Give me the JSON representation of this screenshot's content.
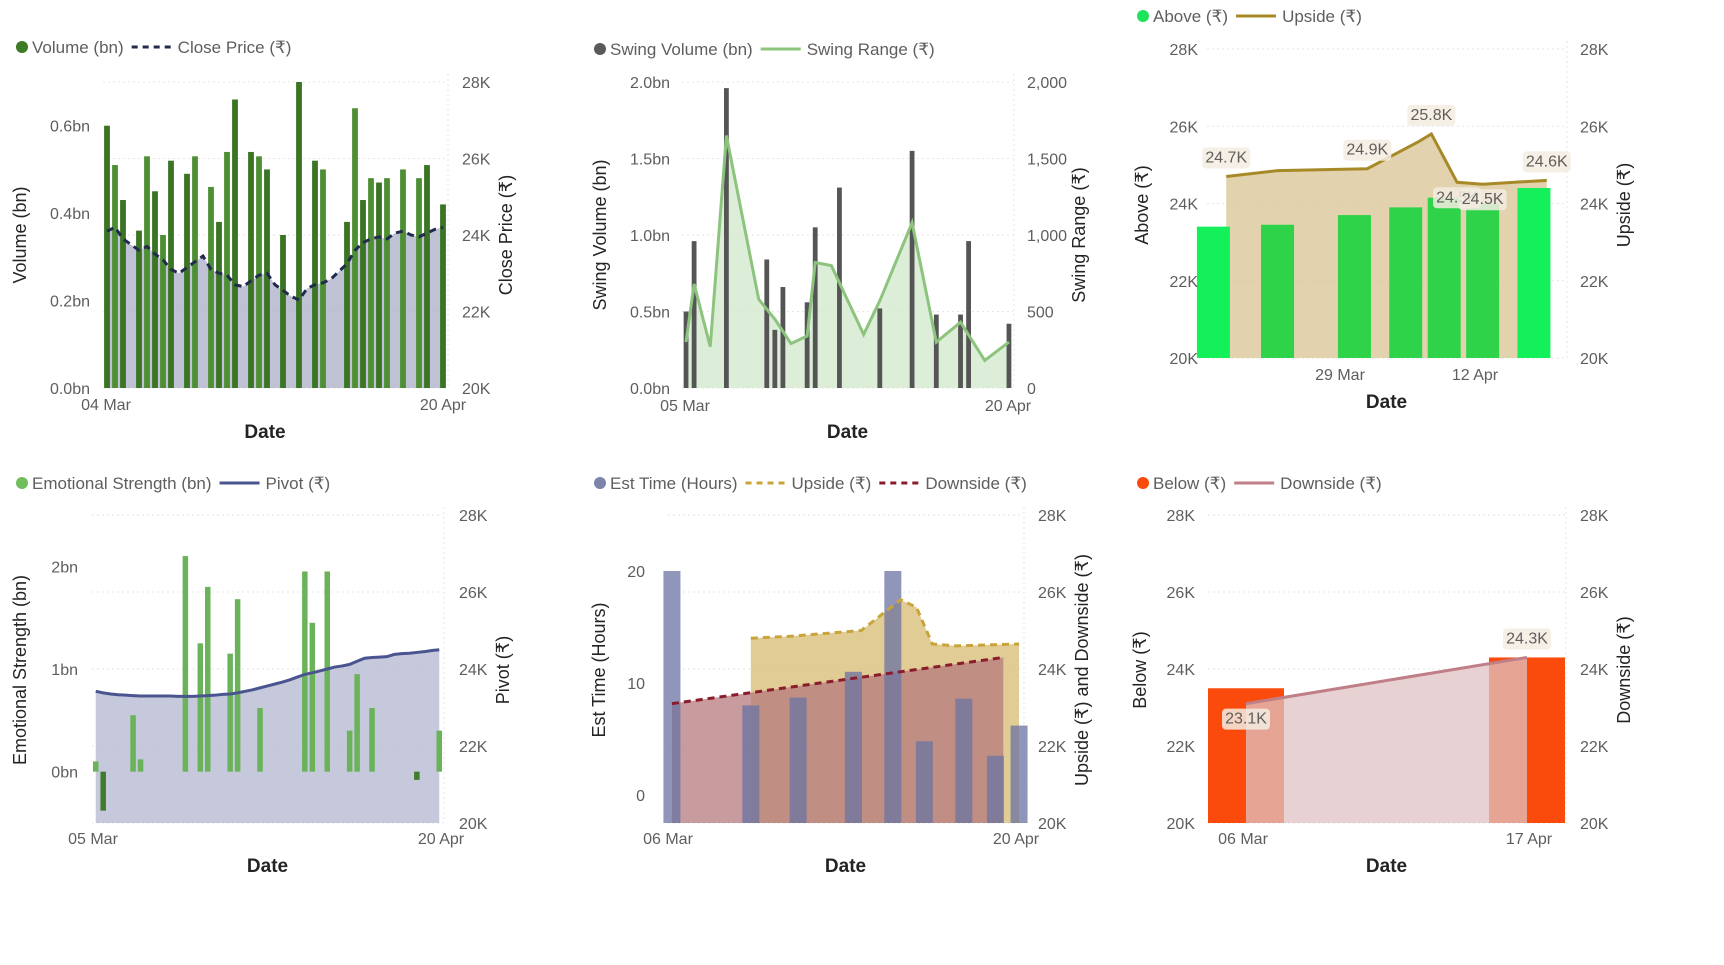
{
  "colors": {
    "tick": "#605e5c",
    "axis_title": "#252423",
    "grid": "#e6e6e6",
    "label_bg": "#f3ece2"
  },
  "charts": [
    {
      "id": "volume-close",
      "legend": [
        {
          "label": "Volume (bn)",
          "kind": "dot",
          "color": "#3c7a26"
        },
        {
          "label": "Close Price (₹)",
          "kind": "dash",
          "color": "#222a4d"
        }
      ],
      "xlabel": "Date",
      "ylabel_left": "Volume (bn)",
      "ylabel_right": "Close Price (₹)",
      "x_ticks": [
        "04 Mar",
        "20 Apr"
      ],
      "y_left_ticks": [
        "0.0bn",
        "0.2bn",
        "0.4bn",
        "0.6bn"
      ],
      "y_right_ticks": [
        "20K",
        "22K",
        "24K",
        "26K",
        "28K"
      ]
    },
    {
      "id": "swing",
      "legend": [
        {
          "label": "Swing Volume (bn)",
          "kind": "dot",
          "color": "#5a5a5a"
        },
        {
          "label": "Swing Range (₹)",
          "kind": "line",
          "color": "#8cc47e"
        }
      ],
      "xlabel": "Date",
      "ylabel_left": "Swing Volume (bn)",
      "ylabel_right": "Swing Range (₹)",
      "x_ticks": [
        "05 Mar",
        "20 Apr"
      ],
      "y_left_ticks": [
        "0.0bn",
        "0.5bn",
        "1.0bn",
        "1.5bn",
        "2.0bn"
      ],
      "y_right_ticks": [
        "0",
        "500",
        "1,000",
        "1,500",
        "2,000"
      ]
    },
    {
      "id": "above-upside",
      "legend": [
        {
          "label": "Above (₹)",
          "kind": "dot",
          "color": "#1fe35a"
        },
        {
          "label": "Upside (₹)",
          "kind": "line",
          "color": "#a78a27"
        }
      ],
      "xlabel": "Date",
      "ylabel_left": "Above (₹)",
      "ylabel_right": "Upside (₹)",
      "x_ticks": [
        "29 Mar",
        "12 Apr"
      ],
      "y_left_ticks": [
        "20K",
        "22K",
        "24K",
        "26K",
        "28K"
      ],
      "y_right_ticks": [
        "20K",
        "22K",
        "24K",
        "26K",
        "28K"
      ]
    },
    {
      "id": "emotional-pivot",
      "legend": [
        {
          "label": "Emotional Strength (bn)",
          "kind": "dot",
          "color": "#6fbd5c"
        },
        {
          "label": "Pivot (₹)",
          "kind": "line",
          "color": "#4a5590"
        }
      ],
      "xlabel": "Date",
      "ylabel_left": "Emotional Strength (bn)",
      "ylabel_right": "Pivot (₹)",
      "x_ticks": [
        "05 Mar",
        "20 Apr"
      ],
      "y_left_ticks": [
        "0bn",
        "1bn",
        "2bn"
      ],
      "y_right_ticks": [
        "20K",
        "22K",
        "24K",
        "26K",
        "28K"
      ]
    },
    {
      "id": "esttime",
      "legend": [
        {
          "label": "Est Time (Hours)",
          "kind": "dot",
          "color": "#7c84aa"
        },
        {
          "label": "Upside (₹)",
          "kind": "dash",
          "color": "#c9a43b"
        },
        {
          "label": "Downside (₹)",
          "kind": "dash",
          "color": "#8a1c2b"
        }
      ],
      "xlabel": "Date",
      "ylabel_left": "Est Time (Hours)",
      "ylabel_right": "Upside (₹) and Downside (₹)",
      "x_ticks": [
        "06 Mar",
        "20 Apr"
      ],
      "y_left_ticks": [
        "0",
        "10",
        "20"
      ],
      "y_right_ticks": [
        "20K",
        "22K",
        "24K",
        "26K",
        "28K"
      ]
    },
    {
      "id": "below-downside",
      "legend": [
        {
          "label": "Below (₹)",
          "kind": "dot",
          "color": "#fb4b0c"
        },
        {
          "label": "Downside (₹)",
          "kind": "line",
          "color": "#c07f87"
        }
      ],
      "xlabel": "Date",
      "ylabel_left": "Below (₹)",
      "ylabel_right": "Downside (₹)",
      "x_ticks": [
        "06 Mar",
        "17 Apr"
      ],
      "y_left_ticks": [
        "20K",
        "22K",
        "24K",
        "26K",
        "28K"
      ],
      "y_right_ticks": [
        "20K",
        "22K",
        "24K",
        "26K",
        "28K"
      ]
    }
  ],
  "chart_data": [
    {
      "type": "bar",
      "title": "",
      "xlabel": "Date",
      "ylabel": "Volume (bn)",
      "ylim": [
        0,
        0.7
      ],
      "y2label": "Close Price (₹)",
      "y2lim": [
        20000,
        28000
      ],
      "grid": true,
      "legend_position": "top-left",
      "x_range": [
        "2024-03-04",
        "2024-04-20"
      ],
      "series": [
        {
          "name": "Volume (bn)",
          "type": "bar",
          "axis": "left",
          "values": [
            0.6,
            0.51,
            0.43,
            0.0,
            0.36,
            0.53,
            0.45,
            0.35,
            0.52,
            0.0,
            0.49,
            0.53,
            0.0,
            0.46,
            0.38,
            0.54,
            0.66,
            0.0,
            0.54,
            0.53,
            0.5,
            0.0,
            0.35,
            0.0,
            0.7,
            0.0,
            0.52,
            0.5,
            0.0,
            0.0,
            0.38,
            0.64,
            0.43,
            0.48,
            0.47,
            0.48,
            0.0,
            0.5,
            0.0,
            0.48,
            0.51,
            0.0,
            0.42
          ]
        },
        {
          "name": "Close Price (₹)",
          "type": "area-line",
          "axis": "right",
          "style": "dashed",
          "values": [
            24100,
            24200,
            23900,
            23750,
            23600,
            23700,
            23500,
            23350,
            23100,
            23000,
            23150,
            23300,
            23450,
            23100,
            23000,
            22950,
            22700,
            22650,
            22800,
            22950,
            23000,
            22700,
            22550,
            22400,
            22300,
            22600,
            22700,
            22750,
            22850,
            23050,
            23250,
            23600,
            23800,
            23900,
            23950,
            23900,
            24050,
            24100,
            24000,
            23950,
            24050,
            24150,
            24200
          ]
        }
      ]
    },
    {
      "type": "bar",
      "title": "",
      "xlabel": "Date",
      "ylabel": "Swing Volume (bn)",
      "ylim": [
        0,
        2.0
      ],
      "y2label": "Swing Range (₹)",
      "y2lim": [
        0,
        2000
      ],
      "grid": true,
      "legend_position": "top-left",
      "x_range": [
        "2024-03-05",
        "2024-04-20"
      ],
      "series": [
        {
          "name": "Swing Volume (bn)",
          "type": "bar",
          "axis": "left",
          "values": [
            0.5,
            0.96,
            0.0,
            0.0,
            0.0,
            1.96,
            0.0,
            0.0,
            0.0,
            0.0,
            0.84,
            0.38,
            0.66,
            0.0,
            0.0,
            0.56,
            1.05,
            0.0,
            0.0,
            1.31,
            0.0,
            0.0,
            0.0,
            0.0,
            0.52,
            0.0,
            0.0,
            0.0,
            1.55,
            0.0,
            0.0,
            0.48,
            0.0,
            0.0,
            0.48,
            0.96,
            0.0,
            0.0,
            0.0,
            0.0,
            0.42
          ]
        },
        {
          "name": "Swing Range (₹)",
          "type": "area-line",
          "axis": "right",
          "x_idx": [
            0,
            1,
            3,
            5,
            9,
            11,
            13,
            15,
            16,
            18,
            22,
            24,
            28,
            31,
            34,
            37,
            40
          ],
          "values": [
            300,
            680,
            270,
            1650,
            580,
            450,
            290,
            340,
            820,
            800,
            350,
            570,
            1080,
            300,
            430,
            180,
            300
          ]
        }
      ]
    },
    {
      "type": "bar",
      "title": "",
      "xlabel": "Date",
      "ylabel": "Above (₹)",
      "ylim": [
        20000,
        28000
      ],
      "y2label": "Upside (₹)",
      "y2lim": [
        20000,
        28000
      ],
      "grid": true,
      "legend_position": "top-left",
      "series": [
        {
          "name": "Above (₹)",
          "type": "bar",
          "axis": "left",
          "x_idx": [
            0,
            5,
            11,
            15,
            18,
            21,
            25
          ],
          "values": [
            23400,
            23450,
            23700,
            23900,
            24150,
            24000,
            24400
          ]
        },
        {
          "name": "Upside (₹)",
          "type": "area-line",
          "axis": "right",
          "x_idx": [
            1,
            5,
            12,
            16,
            17,
            19,
            21,
            26
          ],
          "values": [
            24700,
            24850,
            24900,
            25600,
            25800,
            24550,
            24500,
            24600
          ]
        }
      ],
      "data_labels": [
        "24.7K",
        "24.9K",
        "25.8K",
        "24.5K",
        "24.6K",
        "24.5K"
      ]
    },
    {
      "type": "bar",
      "title": "",
      "xlabel": "Date",
      "ylabel": "Emotional Strength (bn)",
      "ylim": [
        -0.5,
        2.5
      ],
      "y2label": "Pivot (₹)",
      "y2lim": [
        20000,
        28000
      ],
      "grid": true,
      "legend_position": "top-left",
      "x_range": [
        "2024-03-05",
        "2024-04-20"
      ],
      "series": [
        {
          "name": "Emotional Strength (bn)",
          "type": "bar",
          "axis": "left",
          "values": [
            0.1,
            -0.38,
            0.0,
            0.0,
            0.0,
            0.55,
            0.12,
            0.0,
            0.0,
            0.0,
            0.0,
            0.0,
            2.1,
            0.0,
            1.25,
            1.8,
            0.0,
            0.0,
            1.15,
            1.68,
            0.0,
            0.0,
            0.62,
            0.0,
            0.0,
            0.0,
            0.0,
            0.0,
            1.95,
            1.45,
            0.0,
            1.95,
            0.0,
            0.0,
            0.4,
            0.95,
            0.0,
            0.62,
            0.0,
            0.0,
            0.0,
            0.0,
            0.0,
            -0.08,
            0.0,
            0.0,
            0.4
          ]
        },
        {
          "name": "Pivot (₹)",
          "type": "area-line",
          "axis": "right",
          "values": [
            23420,
            23380,
            23350,
            23330,
            23320,
            23310,
            23300,
            23300,
            23300,
            23300,
            23300,
            23290,
            23290,
            23290,
            23300,
            23310,
            23320,
            23340,
            23350,
            23380,
            23420,
            23460,
            23510,
            23560,
            23610,
            23660,
            23720,
            23790,
            23860,
            23900,
            23950,
            24000,
            24050,
            24080,
            24120,
            24200,
            24280,
            24300,
            24310,
            24320,
            24380,
            24400,
            24410,
            24430,
            24450,
            24480,
            24500
          ]
        }
      ]
    },
    {
      "type": "bar",
      "title": "",
      "xlabel": "Date",
      "ylabel": "Est Time (Hours)",
      "ylim": [
        0,
        20
      ],
      "y2label": "Upside (₹) and Downside (₹)",
      "y2lim": [
        20000,
        28000
      ],
      "grid": true,
      "legend_position": "top-left",
      "x_range": [
        "2024-03-06",
        "2024-04-20"
      ],
      "series": [
        {
          "name": "Est Time (Hours)",
          "type": "bar",
          "axis": "left",
          "x_idx": [
            0,
            10,
            16,
            23,
            28,
            32,
            37,
            41,
            44
          ],
          "values": [
            20,
            8,
            8.7,
            11,
            20,
            4.8,
            8.6,
            3.5,
            6.2
          ]
        },
        {
          "name": "Upside (₹)",
          "type": "area-line",
          "axis": "right",
          "style": "dashed",
          "x_idx": [
            10,
            15,
            24,
            29,
            31,
            33,
            36,
            44
          ],
          "values": [
            24800,
            24850,
            25000,
            25800,
            25600,
            24650,
            24600,
            24650
          ]
        },
        {
          "name": "Downside (₹)",
          "type": "area-line",
          "axis": "right",
          "style": "dashed",
          "x_idx": [
            0,
            42
          ],
          "values": [
            23100,
            24300
          ]
        }
      ]
    },
    {
      "type": "bar",
      "title": "",
      "xlabel": "Date",
      "ylabel": "Below (₹)",
      "ylim": [
        20000,
        28000
      ],
      "y2label": "Downside (₹)",
      "y2lim": [
        20000,
        28000
      ],
      "grid": true,
      "legend_position": "top-left",
      "series": [
        {
          "name": "Below (₹)",
          "type": "bar",
          "axis": "left",
          "x_idx": [
            0,
            1
          ],
          "values": [
            23500,
            24300
          ]
        },
        {
          "name": "Downside (₹)",
          "type": "area-line",
          "axis": "right",
          "x_idx": [
            0,
            1
          ],
          "values": [
            23100,
            24300
          ]
        }
      ],
      "data_labels": [
        "23.1K",
        "24.3K"
      ]
    }
  ]
}
